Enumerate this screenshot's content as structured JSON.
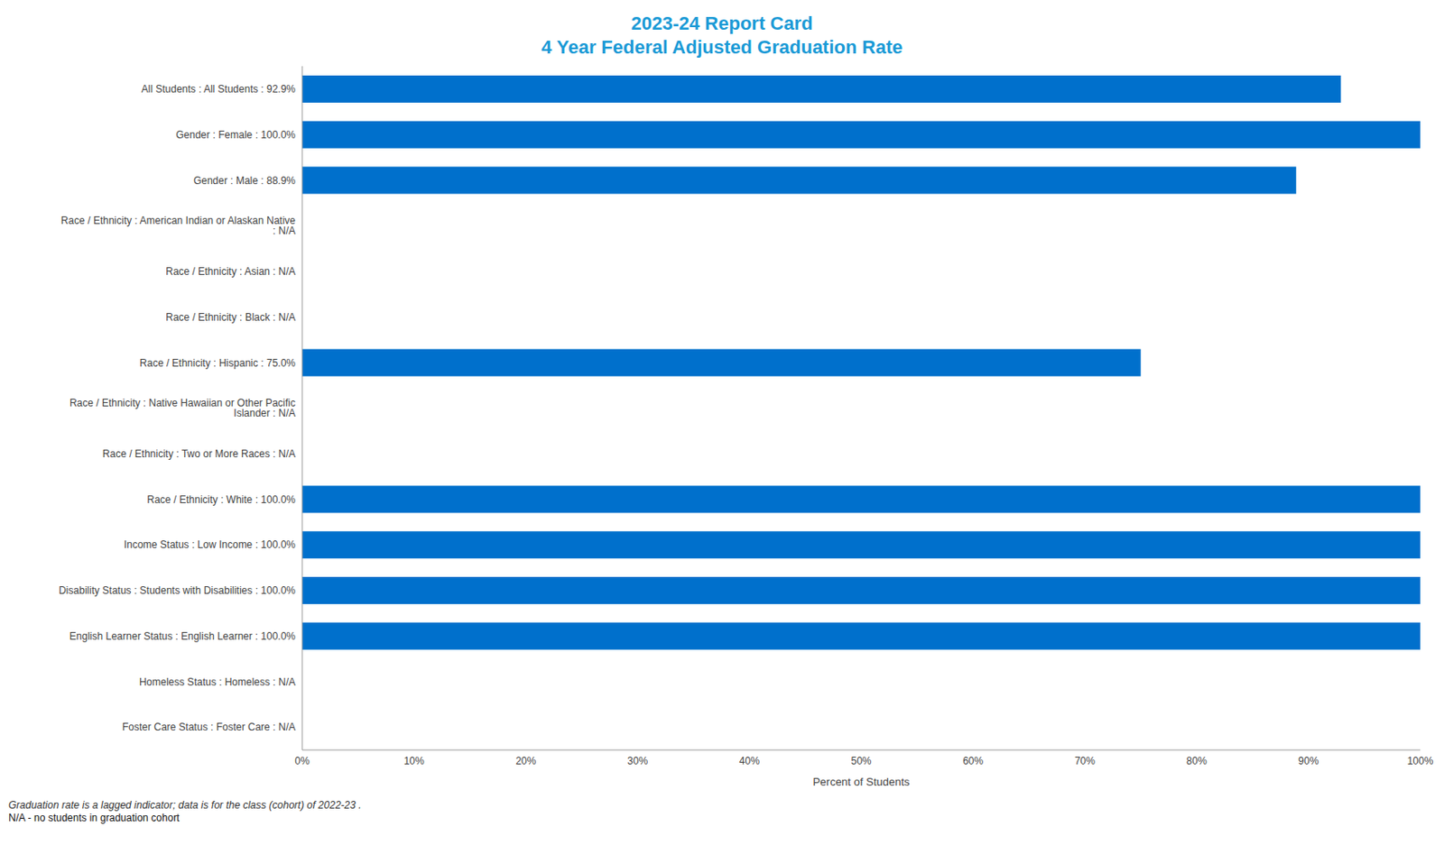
{
  "chart_data": {
    "type": "bar",
    "title": "2023-24 Report Card",
    "subtitle": "4 Year Federal Adjusted Graduation Rate",
    "orientation": "horizontal",
    "categories": [
      "All Students : All Students : 92.9%",
      "Gender : Female : 100.0%",
      "Gender : Male : 88.9%",
      "Race / Ethnicity : American Indian or Alaskan Native : N/A",
      "Race / Ethnicity : Asian : N/A",
      "Race / Ethnicity : Black : N/A",
      "Race / Ethnicity : Hispanic : 75.0%",
      "Race / Ethnicity : Native Hawaiian or Other Pacific Islander : N/A",
      "Race / Ethnicity : Two or More Races : N/A",
      "Race / Ethnicity : White : 100.0%",
      "Income Status : Low Income : 100.0%",
      "Disability Status : Students with Disabilities : 100.0%",
      "English Learner Status : English Learner : 100.0%",
      "Homeless Status : Homeless : N/A",
      "Foster Care Status : Foster Care : N/A"
    ],
    "values": [
      92.9,
      100,
      88.9,
      null,
      null,
      null,
      75,
      null,
      null,
      100,
      100,
      100,
      100,
      null,
      null
    ],
    "color": "#0070cc",
    "x_label": "Percent of Students",
    "xlim": [
      0,
      100
    ],
    "xticks": [
      {
        "value": 0,
        "label": "0%"
      },
      {
        "value": 10,
        "label": "10%"
      },
      {
        "value": 20,
        "label": "20%"
      },
      {
        "value": 30,
        "label": "30%"
      },
      {
        "value": 40,
        "label": "40%"
      },
      {
        "value": 50,
        "label": "50%"
      },
      {
        "value": 60,
        "label": "60%"
      },
      {
        "value": 70,
        "label": "70%"
      },
      {
        "value": 80,
        "label": "80%"
      },
      {
        "value": 90,
        "label": "90%"
      },
      {
        "value": 100,
        "label": "100%"
      }
    ],
    "grid": false,
    "notes": [
      "Graduation rate is a lagged indicator; data is for the class (cohort) of 2022-23 .",
      "N/A - no students in graduation cohort"
    ]
  }
}
